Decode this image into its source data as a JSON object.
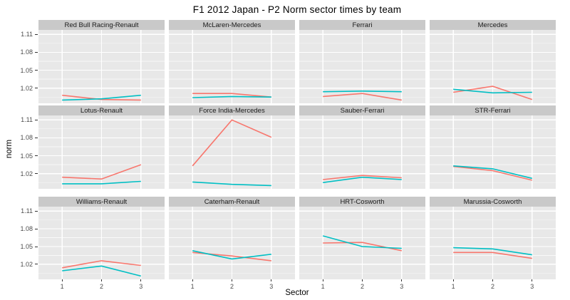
{
  "title": "F1  2012 Japan - P2 Norm sector times by team",
  "axes": {
    "y_label": "norm",
    "x_label": "Sector",
    "y_ticks": [
      "1.02",
      "1.05",
      "1.08",
      "1.11"
    ],
    "y_tick_values": [
      1.02,
      1.05,
      1.08,
      1.11
    ],
    "y_minor_values": [
      1.005,
      1.035,
      1.065,
      1.095
    ],
    "x_ticks": [
      "1",
      "2",
      "3"
    ],
    "x_tick_values": [
      1,
      2,
      3
    ]
  },
  "colors": {
    "background": "#ffffff",
    "panel_background": "#e8e8e8",
    "strip_background": "#c9c9c9",
    "grid_major": "#ffffff",
    "grid_minor": "#ffffff",
    "series_red": "#F8766D",
    "series_teal": "#00BFC4",
    "tick_text": "#4d4d4d",
    "tick_mark": "#333333",
    "strip_text": "#1a1a1a",
    "title_text": "#000000"
  },
  "chart_data": {
    "type": "line",
    "title": "F1  2012 Japan - P2 Norm sector times by team",
    "xlabel": "Sector",
    "ylabel": "norm",
    "x": [
      1,
      2,
      3
    ],
    "xlim": [
      0.4,
      3.6
    ],
    "ylim": [
      0.9945,
      1.1175
    ],
    "grid": true,
    "legend": "none",
    "facet_layout": {
      "rows": 3,
      "cols": 4
    },
    "facets": [
      {
        "team": "Red Bull Racing-Renault",
        "series": [
          {
            "id": "series-red",
            "color": "#F8766D",
            "values": [
              1.008,
              1.001,
              1.0
            ]
          },
          {
            "id": "series-teal",
            "color": "#00BFC4",
            "values": [
              1.0,
              1.002,
              1.008
            ]
          }
        ]
      },
      {
        "team": "McLaren-Mercedes",
        "series": [
          {
            "id": "series-red",
            "color": "#F8766D",
            "values": [
              1.011,
              1.011,
              1.005
            ]
          },
          {
            "id": "series-teal",
            "color": "#00BFC4",
            "values": [
              1.004,
              1.006,
              1.005
            ]
          }
        ]
      },
      {
        "team": "Ferrari",
        "series": [
          {
            "id": "series-red",
            "color": "#F8766D",
            "values": [
              1.006,
              1.011,
              1.0
            ]
          },
          {
            "id": "series-teal",
            "color": "#00BFC4",
            "values": [
              1.014,
              1.015,
              1.014
            ]
          }
        ]
      },
      {
        "team": "Mercedes",
        "series": [
          {
            "id": "series-red",
            "color": "#F8766D",
            "values": [
              1.013,
              1.023,
              1.001
            ]
          },
          {
            "id": "series-teal",
            "color": "#00BFC4",
            "values": [
              1.018,
              1.012,
              1.013
            ]
          }
        ]
      },
      {
        "team": "Lotus-Renault",
        "series": [
          {
            "id": "series-red",
            "color": "#F8766D",
            "values": [
              1.014,
              1.011,
              1.035
            ]
          },
          {
            "id": "series-teal",
            "color": "#00BFC4",
            "values": [
              1.003,
              1.003,
              1.007
            ]
          }
        ]
      },
      {
        "team": "Force India-Mercedes",
        "series": [
          {
            "id": "series-red",
            "color": "#F8766D",
            "values": [
              1.033,
              1.11,
              1.081
            ]
          },
          {
            "id": "series-teal",
            "color": "#00BFC4",
            "values": [
              1.006,
              1.002,
              1.0
            ]
          }
        ]
      },
      {
        "team": "Sauber-Ferrari",
        "series": [
          {
            "id": "series-red",
            "color": "#F8766D",
            "values": [
              1.01,
              1.017,
              1.013
            ]
          },
          {
            "id": "series-teal",
            "color": "#00BFC4",
            "values": [
              1.005,
              1.014,
              1.01
            ]
          }
        ]
      },
      {
        "team": "STR-Ferrari",
        "series": [
          {
            "id": "series-red",
            "color": "#F8766D",
            "values": [
              1.032,
              1.025,
              1.009
            ]
          },
          {
            "id": "series-teal",
            "color": "#00BFC4",
            "values": [
              1.033,
              1.028,
              1.012
            ]
          }
        ]
      },
      {
        "team": "Williams-Renault",
        "series": [
          {
            "id": "series-red",
            "color": "#F8766D",
            "values": [
              1.014,
              1.026,
              1.018
            ]
          },
          {
            "id": "series-teal",
            "color": "#00BFC4",
            "values": [
              1.009,
              1.017,
              1.0
            ]
          }
        ]
      },
      {
        "team": "Caterham-Renault",
        "series": [
          {
            "id": "series-red",
            "color": "#F8766D",
            "values": [
              1.04,
              1.034,
              1.026
            ]
          },
          {
            "id": "series-teal",
            "color": "#00BFC4",
            "values": [
              1.043,
              1.029,
              1.037
            ]
          }
        ]
      },
      {
        "team": "HRT-Cosworth",
        "series": [
          {
            "id": "series-red",
            "color": "#F8766D",
            "values": [
              1.056,
              1.057,
              1.043
            ]
          },
          {
            "id": "series-teal",
            "color": "#00BFC4",
            "values": [
              1.068,
              1.05,
              1.047
            ]
          }
        ]
      },
      {
        "team": "Marussia-Cosworth",
        "series": [
          {
            "id": "series-red",
            "color": "#F8766D",
            "values": [
              1.04,
              1.04,
              1.03
            ]
          },
          {
            "id": "series-teal",
            "color": "#00BFC4",
            "values": [
              1.048,
              1.046,
              1.036
            ]
          }
        ]
      }
    ]
  }
}
